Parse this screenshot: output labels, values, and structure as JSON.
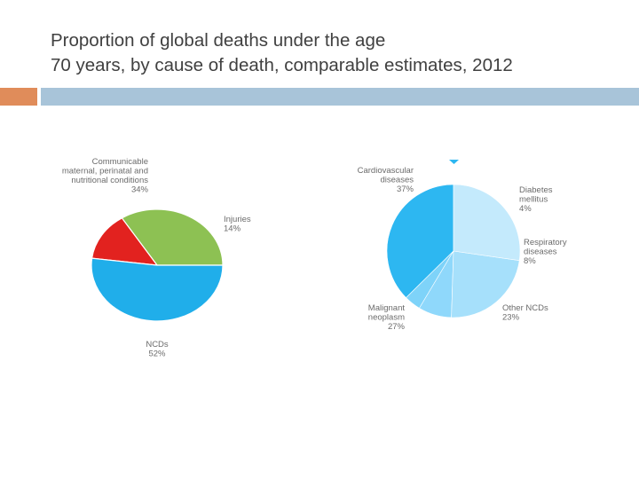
{
  "slide": {
    "title_line1": "Proportion of global deaths under the age",
    "title_line2": "70 years, by cause of death, comparable estimates, 2012"
  },
  "colors": {
    "accent_orange": "#e08c5a",
    "accent_blue": "#a8c4d9"
  },
  "chart_data": [
    {
      "type": "pie",
      "title": "",
      "slices": [
        {
          "name": "Communicable maternal, perinatal and nutritional conditions",
          "label_lines": [
            "Communicable",
            "maternal, perinatal and",
            "nutritional conditions"
          ],
          "value_label": "34%",
          "value": 34,
          "color": "#8dc153"
        },
        {
          "name": "Injuries",
          "label_lines": [
            "Injuries"
          ],
          "value_label": "14%",
          "value": 14,
          "color": "#e2221f"
        },
        {
          "name": "NCDs",
          "label_lines": [
            "NCDs"
          ],
          "value_label": "52%",
          "value": 52,
          "color": "#20aeea"
        }
      ]
    },
    {
      "type": "pie",
      "title": "",
      "slices": [
        {
          "name": "Cardiovascular diseases",
          "label_lines": [
            "Cardiovascular",
            "diseases"
          ],
          "value_label": "37%",
          "value": 37,
          "color": "#2db7f1"
        },
        {
          "name": "Diabetes mellitus",
          "label_lines": [
            "Diabetes",
            "mellitus"
          ],
          "value_label": "4%",
          "value": 4,
          "color": "#7ed3f9"
        },
        {
          "name": "Respiratory diseases",
          "label_lines": [
            "Respiratory",
            "diseases"
          ],
          "value_label": "8%",
          "value": 8,
          "color": "#8fd8fb"
        },
        {
          "name": "Other NCDs",
          "label_lines": [
            "Other NCDs"
          ],
          "value_label": "23%",
          "value": 23,
          "color": "#a6e0fb"
        },
        {
          "name": "Malignant neoplasm",
          "label_lines": [
            "Malignant",
            "neoplasm"
          ],
          "value_label": "27%",
          "value": 27,
          "color": "#c4eafc"
        }
      ]
    }
  ]
}
